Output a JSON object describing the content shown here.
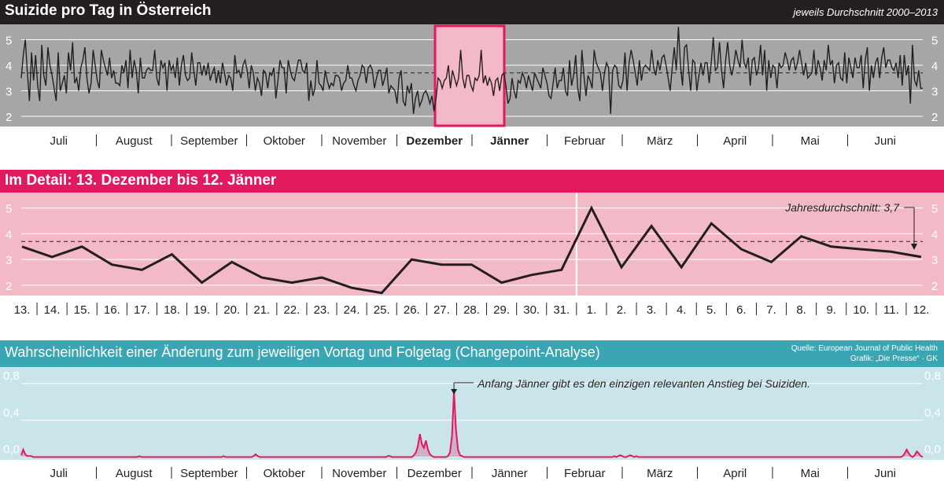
{
  "panel1": {
    "title": "Suizide pro Tag in Österreich",
    "note": "jeweils Durchschnitt 2000–2013"
  },
  "panel2": {
    "title": "Im Detail: 13. Dezember bis 12. Jänner",
    "annotation": "Jahresdurchschnitt: 3,7"
  },
  "panel3": {
    "title": "Wahrscheinlichkeit einer Änderung zum jeweiligen Vortag und Folgetag (Changepoint-Analyse)",
    "source": "Quelle: European Journal of Public Health",
    "credit": "Grafik: „Die Presse“ · GK",
    "annotation": "Anfang Jänner gibt es den einzigen relevanten Anstieg bei Suiziden."
  },
  "colors": {
    "dark": "#231f20",
    "pink": "#e2195f",
    "pink_light": "#f4b9c6",
    "teal": "#3aa5b3",
    "teal_light": "#c9e5ea",
    "gray": "#a6a6a6"
  },
  "chart_data": [
    {
      "type": "line",
      "title": "Suizide pro Tag in Österreich",
      "subtitle": "jeweils Durchschnitt 2000–2013",
      "months": [
        "Juli",
        "August",
        "September",
        "Oktober",
        "November",
        "Dezember",
        "Jänner",
        "Februar",
        "März",
        "April",
        "Mai",
        "Juni"
      ],
      "highlight_months": [
        "Dezember",
        "Jänner"
      ],
      "yticks": [
        "2",
        "3",
        "4",
        "5"
      ],
      "ylim": [
        1.6,
        5.6
      ],
      "mean": 3.7,
      "grid": true,
      "highlight_range": [
        "13. Dezember",
        "12. Jänner"
      ],
      "series": [
        {
          "values": [
            3.5,
            4.4,
            5.0,
            3.7,
            2.6,
            4.5,
            3.4,
            4.4,
            3.2,
            2.6,
            4.8,
            3.6,
            3.2,
            4.7,
            4.0,
            3.6,
            3.1,
            2.6,
            4.5,
            3.0,
            3.3,
            3.6,
            2.9,
            4.5,
            3.8,
            4.9,
            3.3,
            3.5,
            3.0,
            3.9,
            4.2,
            4.7,
            3.5,
            2.9,
            3.3,
            4.6,
            4.0,
            3.4,
            3.1,
            4.6,
            4.2,
            3.9,
            3.6,
            4.3,
            3.5,
            3.8,
            3.3,
            3.3,
            3.2,
            4.0,
            3.7,
            4.2,
            3.1,
            4.6,
            3.5,
            4.2,
            3.8,
            2.9,
            4.3,
            3.5,
            3.5,
            3.8,
            3.9,
            3.8,
            3.8,
            4.6,
            3.5,
            3.2,
            4.2,
            3.9,
            4.1,
            3.0,
            4.2,
            3.8,
            4.0,
            3.5,
            4.3,
            3.2,
            4.0,
            4.4,
            3.6,
            3.4,
            3.5,
            4.5,
            3.8,
            3.2,
            4.1,
            4.1,
            3.6,
            4.0,
            3.6,
            4.1,
            3.4,
            3.7,
            3.9,
            3.3,
            3.8,
            3.3,
            4.1,
            3.7,
            3.2,
            3.6,
            3.5,
            3.0,
            4.4,
            3.7,
            3.8,
            3.5,
            4.0,
            4.2,
            3.8,
            3.1,
            4.0,
            3.7,
            3.0,
            3.5,
            3.3,
            2.8,
            3.8,
            3.7,
            3.1,
            3.7,
            3.6,
            3.9,
            2.7,
            3.4,
            4.2,
            3.9,
            3.9,
            2.9,
            4.2,
            3.8,
            3.5,
            3.4,
            3.8,
            4.2,
            4.2,
            3.8,
            3.7,
            4.1,
            2.6,
            3.4,
            2.8,
            3.1,
            4.2,
            3.3,
            3.2,
            3.0,
            3.8,
            3.4,
            3.1,
            3.3,
            3.2,
            3.6,
            3.6,
            3.5,
            3.0,
            3.3,
            3.4,
            4.0,
            3.5,
            3.5,
            3.2,
            3.0,
            3.4,
            3.6,
            4.0,
            3.9,
            3.3,
            3.9,
            4.0,
            3.8,
            3.1,
            3.5,
            3.8,
            3.8,
            3.2,
            3.5,
            3.9,
            2.9,
            3.2,
            3.1,
            3.0,
            2.5,
            3.5,
            3.8,
            2.6,
            2.4,
            3.2,
            2.9,
            3.3,
            2.1,
            2.7,
            3.0,
            2.4,
            2.6,
            2.9,
            3.0,
            2.8,
            2.5,
            2.8,
            2.2,
            2.7,
            3.5,
            3.4,
            3.1,
            3.4,
            3.5,
            4.0,
            3.1,
            3.8,
            3.5,
            3.2,
            3.5,
            4.6,
            3.5,
            3.1,
            3.6,
            3.6,
            3.2,
            3.0,
            3.5,
            3.4,
            3.6,
            4.6,
            3.3,
            3.6,
            3.2,
            3.5,
            3.3,
            2.8,
            3.4,
            3.5,
            3.0,
            3.6,
            3.7,
            3.2,
            2.5,
            2.7,
            3.5,
            3.0,
            2.7,
            3.4,
            3.3,
            3.7,
            3.5,
            3.1,
            3.6,
            3.3,
            3.0,
            3.7,
            3.5,
            3.3,
            3.1,
            3.9,
            3.6,
            3.3,
            2.8,
            2.7,
            3.3,
            3.9,
            3.1,
            3.4,
            3.4,
            3.9,
            3.0,
            2.8,
            4.2,
            3.2,
            3.6,
            4.4,
            3.1,
            2.6,
            4.6,
            3.6,
            2.8,
            3.6,
            3.4,
            3.1,
            4.6,
            4.1,
            3.9,
            3.7,
            3.0,
            3.7,
            4.1,
            3.9,
            2.1,
            3.8,
            4.0,
            3.9,
            3.2,
            3.1,
            3.4,
            4.5,
            3.0,
            4.1,
            4.6,
            4.2,
            3.7,
            3.2,
            4.2,
            3.4,
            3.9,
            4.0,
            3.9,
            3.8,
            4.6,
            3.9,
            3.6,
            4.2,
            3.8,
            4.3,
            4.4,
            4.0,
            3.5,
            3.0,
            3.9,
            4.7,
            3.8,
            5.5,
            4.0,
            3.2,
            4.7,
            4.8,
            3.8,
            3.0,
            4.2,
            4.1,
            3.0,
            3.6,
            4.1,
            3.6,
            4.1,
            4.1,
            3.3,
            4.1,
            5.1,
            3.8,
            3.9,
            4.9,
            3.8,
            3.1,
            4.2,
            4.9,
            4.0,
            3.6,
            4.0,
            4.6,
            4.2,
            3.9,
            5.0,
            4.1,
            3.9,
            4.3,
            3.2,
            4.2,
            4.3,
            3.6,
            3.9,
            4.8,
            3.6,
            4.6,
            3.0,
            4.2,
            3.5,
            4.0,
            3.9,
            3.1,
            4.1,
            3.9,
            4.0,
            4.5,
            4.2,
            3.8,
            4.2,
            4.3,
            3.8,
            4.1,
            4.6,
            4.1,
            3.6,
            4.1,
            3.5,
            3.6,
            3.7,
            4.6,
            3.6,
            4.2,
            3.9,
            3.4,
            4.2,
            3.8,
            4.8,
            4.0,
            4.2,
            3.3,
            4.0,
            4.1,
            3.5,
            3.4,
            4.5,
            3.3,
            4.3,
            3.9,
            3.5,
            4.3,
            3.9,
            3.9,
            4.4,
            3.1,
            4.2,
            4.7,
            3.0,
            4.0,
            3.5,
            4.1,
            4.3,
            3.5,
            4.3,
            4.7,
            3.9,
            4.2,
            4.2,
            3.9,
            3.8,
            4.1,
            3.5,
            4.4,
            3.2,
            4.4,
            3.6,
            4.0,
            2.5,
            4.8,
            3.4,
            3.2,
            3.8,
            3.1,
            3.1
          ]
        }
      ]
    },
    {
      "type": "line",
      "title": "Im Detail: 13. Dezember bis 12. Jänner",
      "categories": [
        "13.",
        "14.",
        "15.",
        "16.",
        "17.",
        "18.",
        "19.",
        "20.",
        "21.",
        "22.",
        "23.",
        "24.",
        "25.",
        "26.",
        "27.",
        "28.",
        "29.",
        "30.",
        "31.",
        "1.",
        "2.",
        "3.",
        "4.",
        "5.",
        "6.",
        "7.",
        "8.",
        "9.",
        "10.",
        "11.",
        "12."
      ],
      "values": [
        3.5,
        3.1,
        3.5,
        2.8,
        2.6,
        3.2,
        2.1,
        2.9,
        2.3,
        2.1,
        2.3,
        1.9,
        1.7,
        3.0,
        2.8,
        2.8,
        2.1,
        2.4,
        2.6,
        5.0,
        2.7,
        4.3,
        2.7,
        4.4,
        3.4,
        2.9,
        3.9,
        3.5,
        3.4,
        3.3,
        3.1
      ],
      "yticks": [
        "2",
        "3",
        "4",
        "5"
      ],
      "ylim": [
        1.6,
        5.6
      ],
      "mean": 3.7,
      "year_boundary_after": "31.",
      "grid": true
    },
    {
      "type": "area",
      "title": "Wahrscheinlichkeit einer Änderung zum jeweiligen Vortag und Folgetag (Changepoint-Analyse)",
      "months": [
        "Juli",
        "August",
        "September",
        "Oktober",
        "November",
        "Dezember",
        "Jänner",
        "Februar",
        "März",
        "April",
        "Mai",
        "Juni"
      ],
      "yticks": [
        "0,0",
        "0,4",
        "0,8"
      ],
      "ylim": [
        -0.03,
        0.98
      ],
      "grid": true,
      "series": [
        {
          "values": [
            0.02,
            0.08,
            0.03,
            0.01,
            0.01,
            0.01,
            0.0,
            0.0,
            0.0,
            0.0,
            0.0,
            0.0,
            0.0,
            0.0,
            0.0,
            0.0,
            0.0,
            0.0,
            0.0,
            0.0,
            0.0,
            0.0,
            0.0,
            0.0,
            0.0,
            0.0,
            0.0,
            0.0,
            0.0,
            0.0,
            0.0,
            0.0,
            0.0,
            0.0,
            0.0,
            0.0,
            0.0,
            0.0,
            0.0,
            0.0,
            0.0,
            0.0,
            0.0,
            0.0,
            0.0,
            0.0,
            0.0,
            0.0,
            0.0,
            0.0,
            0.0,
            0.0,
            0.0,
            0.0,
            0.0,
            0.0,
            0.0,
            0.0,
            0.0,
            0.01,
            0.0,
            0.0,
            0.0,
            0.0,
            0.0,
            0.0,
            0.0,
            0.0,
            0.0,
            0.0,
            0.0,
            0.0,
            0.0,
            0.0,
            0.0,
            0.0,
            0.0,
            0.0,
            0.0,
            0.0,
            0.0,
            0.0,
            0.0,
            0.0,
            0.0,
            0.0,
            0.0,
            0.0,
            0.0,
            0.0,
            0.0,
            0.0,
            0.0,
            0.0,
            0.0,
            0.0,
            0.0,
            0.0,
            0.0,
            0.0,
            0.0,
            0.01,
            0.0,
            0.0,
            0.0,
            0.0,
            0.0,
            0.0,
            0.0,
            0.0,
            0.0,
            0.0,
            0.0,
            0.0,
            0.0,
            0.0,
            0.01,
            0.03,
            0.01,
            0.0,
            0.0,
            0.0,
            0.0,
            0.0,
            0.0,
            0.0,
            0.0,
            0.0,
            0.0,
            0.0,
            0.0,
            0.0,
            0.0,
            0.0,
            0.0,
            0.0,
            0.0,
            0.0,
            0.0,
            0.0,
            0.0,
            0.0,
            0.0,
            0.0,
            0.0,
            0.0,
            0.0,
            0.0,
            0.0,
            0.0,
            0.0,
            0.0,
            0.0,
            0.0,
            0.0,
            0.0,
            0.0,
            0.0,
            0.0,
            0.0,
            0.0,
            0.0,
            0.0,
            0.0,
            0.0,
            0.0,
            0.0,
            0.0,
            0.0,
            0.0,
            0.0,
            0.0,
            0.0,
            0.0,
            0.0,
            0.0,
            0.0,
            0.0,
            0.0,
            0.0,
            0.0,
            0.0,
            0.0,
            0.01,
            0.01,
            0.0,
            0.0,
            0.0,
            0.0,
            0.0,
            0.0,
            0.0,
            0.0,
            0.0,
            0.0,
            0.0,
            0.02,
            0.05,
            0.12,
            0.25,
            0.14,
            0.1,
            0.18,
            0.08,
            0.03,
            0.01,
            0.0,
            0.0,
            0.0,
            0.0,
            0.0,
            0.0,
            0.0,
            0.01,
            0.05,
            0.22,
            0.72,
            0.3,
            0.08,
            0.02,
            0.01,
            0.0,
            0.0,
            0.0,
            0.0,
            0.0,
            0.0,
            0.0,
            0.0,
            0.0,
            0.0,
            0.0,
            0.0,
            0.0,
            0.0,
            0.0,
            0.0,
            0.0,
            0.0,
            0.0,
            0.0,
            0.0,
            0.0,
            0.0,
            0.0,
            0.0,
            0.0,
            0.0,
            0.0,
            0.0,
            0.0,
            0.0,
            0.0,
            0.0,
            0.0,
            0.0,
            0.0,
            0.0,
            0.0,
            0.0,
            0.0,
            0.0,
            0.0,
            0.0,
            0.0,
            0.0,
            0.0,
            0.0,
            0.0,
            0.0,
            0.0,
            0.0,
            0.0,
            0.0,
            0.0,
            0.0,
            0.0,
            0.0,
            0.0,
            0.0,
            0.0,
            0.0,
            0.0,
            0.0,
            0.0,
            0.0,
            0.0,
            0.0,
            0.0,
            0.0,
            0.0,
            0.0,
            0.0,
            0.0,
            0.0,
            0.0,
            0.01,
            0.0,
            0.01,
            0.02,
            0.01,
            0.0,
            0.0,
            0.01,
            0.02,
            0.01,
            0.0,
            0.01,
            0.0,
            0.0,
            0.0,
            0.0,
            0.0,
            0.0,
            0.0,
            0.0,
            0.0,
            0.0,
            0.0,
            0.0,
            0.0,
            0.0,
            0.0,
            0.0,
            0.0,
            0.0,
            0.0,
            0.0,
            0.0,
            0.0,
            0.0,
            0.0,
            0.0,
            0.0,
            0.0,
            0.0,
            0.0,
            0.0,
            0.0,
            0.0,
            0.0,
            0.0,
            0.0,
            0.0,
            0.0,
            0.0,
            0.0,
            0.0,
            0.0,
            0.0,
            0.0,
            0.0,
            0.0,
            0.0,
            0.0,
            0.0,
            0.0,
            0.0,
            0.0,
            0.0,
            0.0,
            0.0,
            0.0,
            0.0,
            0.0,
            0.0,
            0.0,
            0.0,
            0.0,
            0.0,
            0.0,
            0.0,
            0.0,
            0.0,
            0.0,
            0.0,
            0.0,
            0.0,
            0.0,
            0.0,
            0.0,
            0.0,
            0.0,
            0.0,
            0.0,
            0.0,
            0.0,
            0.0,
            0.0,
            0.0,
            0.0,
            0.0,
            0.0,
            0.0,
            0.0,
            0.0,
            0.0,
            0.0,
            0.0,
            0.0,
            0.0,
            0.0,
            0.0,
            0.0,
            0.0,
            0.0,
            0.0,
            0.0,
            0.0,
            0.0,
            0.0,
            0.0,
            0.0,
            0.0,
            0.0,
            0.0,
            0.0,
            0.0,
            0.0,
            0.0,
            0.0,
            0.0,
            0.0,
            0.0,
            0.0,
            0.0,
            0.0,
            0.0,
            0.0,
            0.0,
            0.0,
            0.0,
            0.0,
            0.0,
            0.0,
            0.0,
            0.0,
            0.0,
            0.0,
            0.0,
            0.01,
            0.04,
            0.08,
            0.04,
            0.01,
            0.0,
            0.02,
            0.06,
            0.04,
            0.01,
            0.0
          ]
        }
      ]
    }
  ]
}
